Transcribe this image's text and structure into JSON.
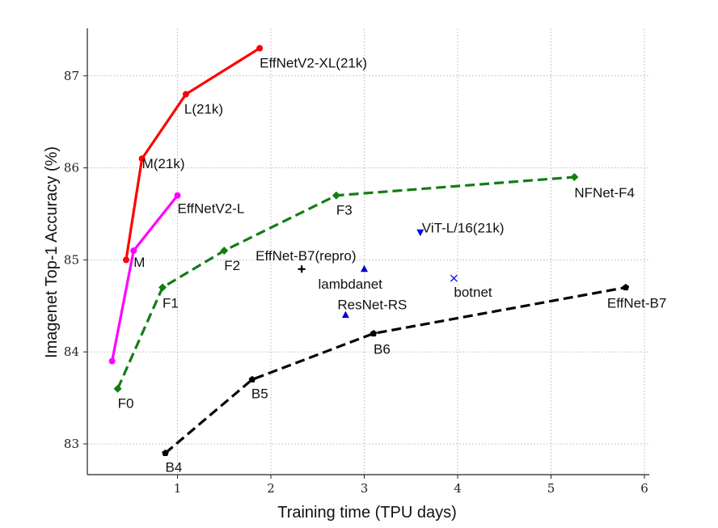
{
  "chart_data": {
    "type": "line",
    "title": "",
    "xlabel": "Training time (TPU days)",
    "ylabel": "Imagenet Top-1 Accuracy (%)",
    "xlim": [
      0,
      6.05
    ],
    "ylim": [
      82.7,
      87.5
    ],
    "xticks": [
      1,
      2,
      3,
      4,
      5,
      6
    ],
    "yticks": [
      83,
      84,
      85,
      86,
      87
    ],
    "grid": true,
    "legend": "none",
    "series": [
      {
        "key": "effnetv2-21k",
        "color": "#ff0000",
        "dash": "solid",
        "marker": "circle",
        "points": [
          {
            "x": 0.45,
            "y": 85.0,
            "label": ""
          },
          {
            "x": 0.62,
            "y": 86.1,
            "label": "M(21k)"
          },
          {
            "x": 1.09,
            "y": 86.8,
            "label": "L(21k)"
          },
          {
            "x": 1.88,
            "y": 87.3,
            "label": "EffNetV2-XL(21k)"
          }
        ]
      },
      {
        "key": "effnetv2",
        "color": "#ff00ff",
        "dash": "solid",
        "marker": "circle",
        "points": [
          {
            "x": 0.3,
            "y": 83.9,
            "label": ""
          },
          {
            "x": 0.53,
            "y": 85.1,
            "label": "M"
          },
          {
            "x": 1.0,
            "y": 85.7,
            "label": "EffNetV2-L"
          }
        ]
      },
      {
        "key": "nfnet",
        "color": "#137d13",
        "dash": "dashed",
        "marker": "diamond",
        "points": [
          {
            "x": 0.36,
            "y": 83.6,
            "label": "F0"
          },
          {
            "x": 0.84,
            "y": 84.7,
            "label": "F1"
          },
          {
            "x": 1.5,
            "y": 85.1,
            "label": "F2"
          },
          {
            "x": 2.7,
            "y": 85.7,
            "label": "F3"
          },
          {
            "x": 5.25,
            "y": 85.9,
            "label": "NFNet-F4"
          }
        ]
      },
      {
        "key": "effnet",
        "color": "#000000",
        "dash": "dashed",
        "marker": "pentagon",
        "points": [
          {
            "x": 0.87,
            "y": 82.9,
            "label": "B4"
          },
          {
            "x": 1.8,
            "y": 83.7,
            "label": "B5"
          },
          {
            "x": 3.1,
            "y": 84.2,
            "label": "B6"
          },
          {
            "x": 5.8,
            "y": 84.7,
            "label": "EffNet-B7"
          }
        ]
      }
    ],
    "singles": [
      {
        "x": 2.33,
        "y": 84.9,
        "label": "EffNet-B7(repro)",
        "color": "#000000",
        "marker": "plus"
      },
      {
        "x": 3.0,
        "y": 84.9,
        "label": "lambdanet",
        "color": "#0000cc",
        "marker": "triangle-up"
      },
      {
        "x": 2.8,
        "y": 84.4,
        "label": "ResNet-RS",
        "color": "#0000cc",
        "marker": "triangle-up"
      },
      {
        "x": 3.6,
        "y": 85.3,
        "label": "ViT-L/16(21k)",
        "color": "#0000ff",
        "marker": "triangle-down"
      },
      {
        "x": 3.96,
        "y": 84.8,
        "label": "botnet",
        "color": "#0000ff",
        "marker": "x"
      }
    ]
  }
}
